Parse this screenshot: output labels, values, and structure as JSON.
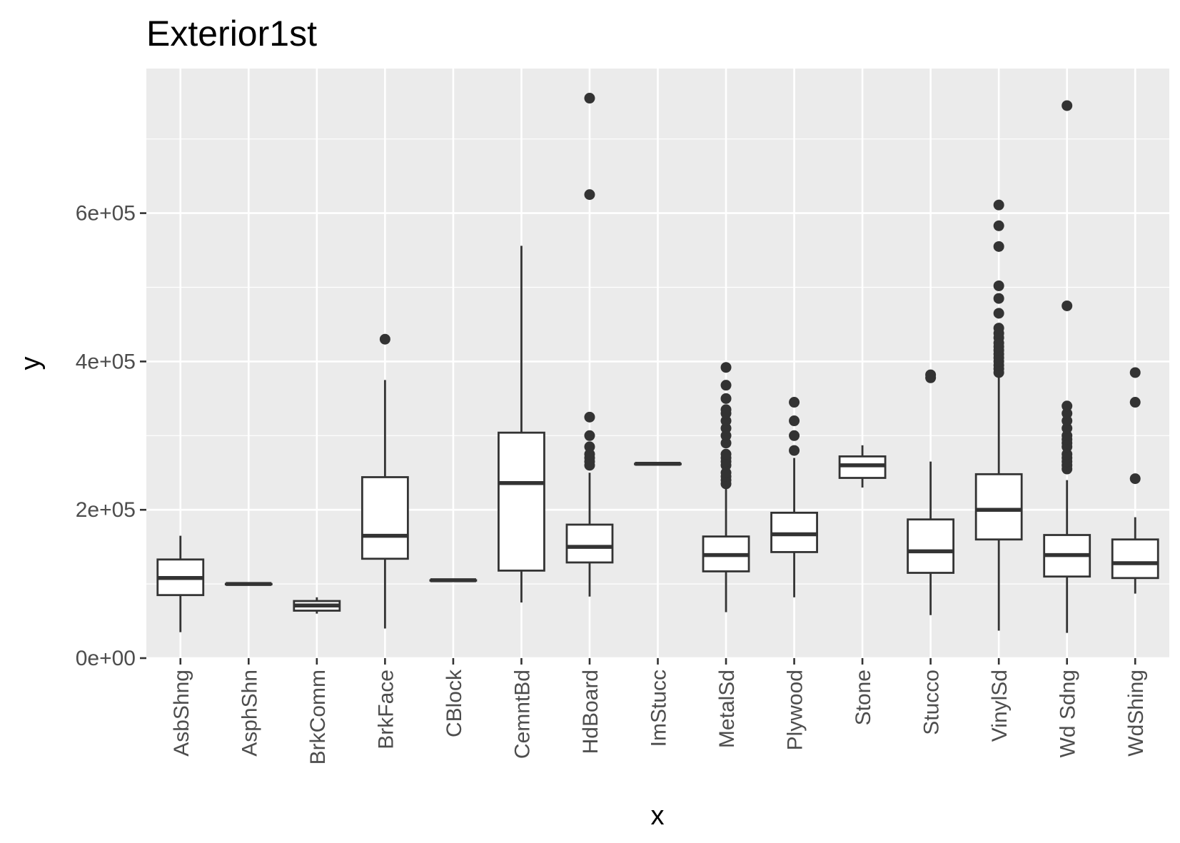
{
  "chart_data": {
    "type": "boxplot",
    "title": "Exterior1st",
    "xlabel": "x",
    "ylabel": "y",
    "ylim": [
      0,
      795000
    ],
    "y_ticks": [
      {
        "value": 0,
        "label": "0e+00"
      },
      {
        "value": 200000,
        "label": "2e+05"
      },
      {
        "value": 400000,
        "label": "4e+05"
      },
      {
        "value": 600000,
        "label": "6e+05"
      }
    ],
    "grid": true,
    "legend": "none",
    "colors": {
      "panel": "#ebebeb",
      "grid": "#ffffff",
      "box_line": "#333333",
      "box_fill": "#ffffff",
      "tick": "#333333",
      "tick_label": "#4d4d4d"
    },
    "categories": [
      "AsbShng",
      "AsphShn",
      "BrkComm",
      "BrkFace",
      "CBlock",
      "CemntBd",
      "HdBoard",
      "ImStucc",
      "MetalSd",
      "Plywood",
      "Stone",
      "Stucco",
      "VinylSd",
      "Wd Sdng",
      "WdShing"
    ],
    "boxes": [
      {
        "min": 35000,
        "q1": 85000,
        "median": 108000,
        "q3": 133000,
        "max": 165000,
        "outliers": []
      },
      {
        "min": 100000,
        "q1": 100000,
        "median": 100000,
        "q3": 100000,
        "max": 100000,
        "outliers": []
      },
      {
        "min": 60000,
        "q1": 64000,
        "median": 71000,
        "q3": 77000,
        "max": 82000,
        "outliers": []
      },
      {
        "min": 40000,
        "q1": 134000,
        "median": 165000,
        "q3": 244000,
        "max": 375000,
        "outliers": [
          430000
        ]
      },
      {
        "min": 105000,
        "q1": 105000,
        "median": 105000,
        "q3": 105000,
        "max": 105000,
        "outliers": []
      },
      {
        "min": 75000,
        "q1": 118000,
        "median": 236000,
        "q3": 304000,
        "max": 556000,
        "outliers": []
      },
      {
        "min": 83000,
        "q1": 129000,
        "median": 150000,
        "q3": 180000,
        "max": 250000,
        "outliers": [
          260000,
          265000,
          270000,
          275000,
          285000,
          300000,
          325000,
          625000,
          755000
        ]
      },
      {
        "min": 262000,
        "q1": 262000,
        "median": 262000,
        "q3": 262000,
        "max": 262000,
        "outliers": []
      },
      {
        "min": 62000,
        "q1": 117000,
        "median": 139000,
        "q3": 164000,
        "max": 230000,
        "outliers": [
          235000,
          240000,
          245000,
          250000,
          260000,
          265000,
          270000,
          275000,
          290000,
          300000,
          310000,
          320000,
          330000,
          335000,
          350000,
          368000,
          392000
        ]
      },
      {
        "min": 82000,
        "q1": 143000,
        "median": 167000,
        "q3": 196000,
        "max": 270000,
        "outliers": [
          280000,
          300000,
          320000,
          345000
        ]
      },
      {
        "min": 230000,
        "q1": 243000,
        "median": 260000,
        "q3": 272000,
        "max": 287000,
        "outliers": []
      },
      {
        "min": 58000,
        "q1": 115000,
        "median": 144000,
        "q3": 187000,
        "max": 265000,
        "outliers": [
          378000,
          382000
        ]
      },
      {
        "min": 37000,
        "q1": 160000,
        "median": 200000,
        "q3": 248000,
        "max": 380000,
        "outliers": [
          385000,
          390000,
          395000,
          400000,
          405000,
          410000,
          415000,
          420000,
          425000,
          432000,
          438000,
          445000,
          465000,
          485000,
          502000,
          555000,
          583000,
          611000
        ]
      },
      {
        "min": 34000,
        "q1": 110000,
        "median": 139000,
        "q3": 166000,
        "max": 240000,
        "outliers": [
          255000,
          260000,
          265000,
          270000,
          275000,
          285000,
          290000,
          295000,
          300000,
          310000,
          320000,
          330000,
          340000,
          475000,
          745000
        ]
      },
      {
        "min": 87000,
        "q1": 108000,
        "median": 128000,
        "q3": 160000,
        "max": 190000,
        "outliers": [
          242000,
          345000,
          385000
        ]
      }
    ]
  }
}
